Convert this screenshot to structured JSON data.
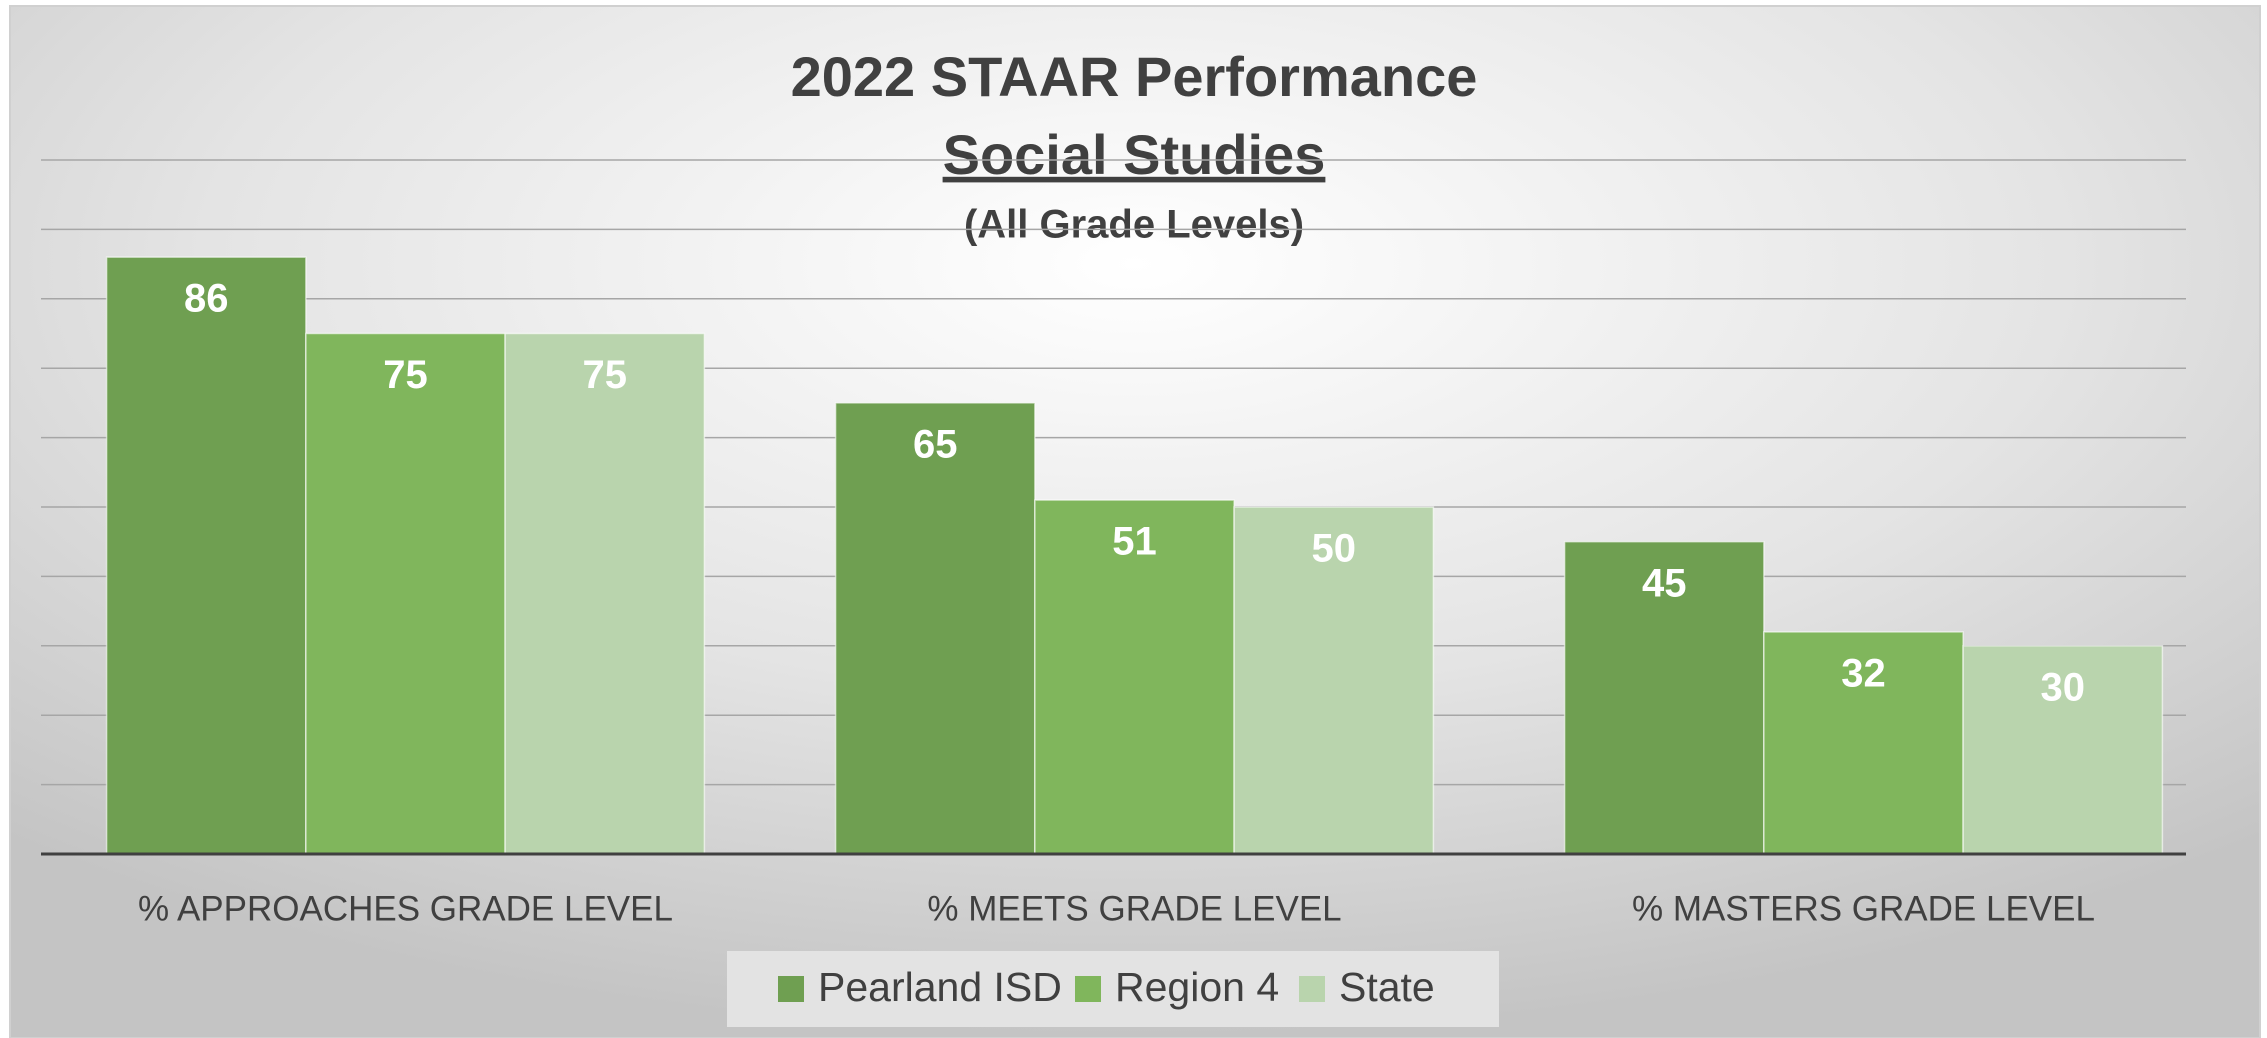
{
  "chart_data": {
    "type": "bar",
    "title": "2022 STAAR Performance",
    "subtitle": "Social Studies",
    "annotation": "(All Grade Levels)",
    "categories": [
      "% APPROACHES GRADE LEVEL",
      "% MEETS GRADE LEVEL",
      "% MASTERS GRADE LEVEL"
    ],
    "series": [
      {
        "name": "Pearland ISD",
        "color": "#6f9f51",
        "values": [
          86,
          65,
          45
        ]
      },
      {
        "name": "Region 4",
        "color": "#80b65c",
        "values": [
          75,
          51,
          32
        ]
      },
      {
        "name": "State",
        "color": "#b9d4ad",
        "values": [
          75,
          50,
          30
        ]
      }
    ],
    "ylim": [
      0,
      100
    ],
    "yticks": [
      0,
      10,
      20,
      30,
      40,
      50,
      60,
      70,
      80,
      90,
      100
    ],
    "grid": true,
    "legend": "bottom"
  }
}
